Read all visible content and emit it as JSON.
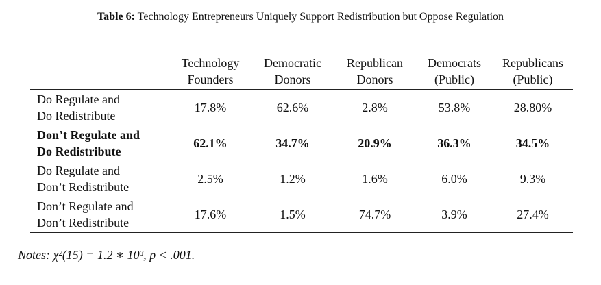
{
  "caption": {
    "label": "Table 6:",
    "text": "Technology Entrepreneurs Uniquely Support Redistribution but Oppose Regulation"
  },
  "table": {
    "headers": [
      {
        "line1": "Technology",
        "line2": "Founders"
      },
      {
        "line1": "Democratic",
        "line2": "Donors"
      },
      {
        "line1": "Republican",
        "line2": "Donors"
      },
      {
        "line1": "Democrats",
        "line2": "(Public)"
      },
      {
        "line1": "Republicans",
        "line2": "(Public)"
      }
    ],
    "rows": [
      {
        "label_line1": "Do Regulate and",
        "label_line2": "Do Redistribute",
        "bold": false,
        "values": [
          "17.8%",
          "62.6%",
          "2.8%",
          "53.8%",
          "28.80%"
        ]
      },
      {
        "label_line1": "Don’t Regulate and",
        "label_line2": "Do Redistribute",
        "bold": true,
        "values": [
          "62.1%",
          "34.7%",
          "20.9%",
          "36.3%",
          "34.5%"
        ]
      },
      {
        "label_line1": "Do Regulate and",
        "label_line2": "Don’t Redistribute",
        "bold": false,
        "values": [
          "2.5%",
          "1.2%",
          "1.6%",
          "6.0%",
          "9.3%"
        ]
      },
      {
        "label_line1": "Don’t Regulate and",
        "label_line2": "Don’t Redistribute",
        "bold": false,
        "values": [
          "17.6%",
          "1.5%",
          "74.7%",
          "3.9%",
          "27.4%"
        ]
      }
    ]
  },
  "notes": {
    "label": "Notes:",
    "text": "χ²(15) = 1.2 ∗ 10³, p < .001."
  }
}
